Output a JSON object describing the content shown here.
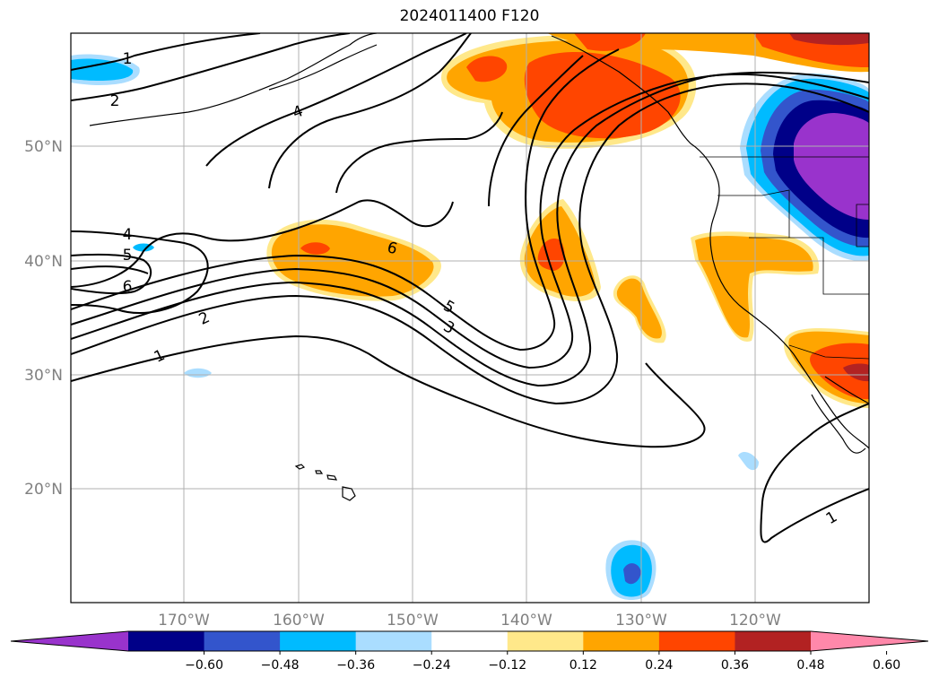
{
  "title": "2024011400 F120",
  "map": {
    "lon_range": [
      -180,
      -110
    ],
    "lat_range": [
      10,
      60
    ],
    "grid": true,
    "lat_ticks": [
      {
        "label": "50°N"
      },
      {
        "label": "40°N"
      },
      {
        "label": "30°N"
      },
      {
        "label": "20°N"
      }
    ],
    "lon_ticks": [
      {
        "label": "170°W"
      },
      {
        "label": "160°W"
      },
      {
        "label": "150°W"
      },
      {
        "label": "140°W"
      },
      {
        "label": "130°W"
      },
      {
        "label": "120°W"
      }
    ],
    "contour_labels": [
      "1",
      "2",
      "4",
      "4",
      "5",
      "6",
      "6",
      "5",
      "3",
      "2",
      "1",
      "1"
    ]
  },
  "colorbar": {
    "ticks": [
      "−0.60",
      "−0.48",
      "−0.36",
      "−0.24",
      "−0.12",
      "0.12",
      "0.24",
      "0.36",
      "0.48",
      "0.60"
    ],
    "colors": [
      "#9933cc",
      "#000088",
      "#3355cc",
      "#00bbff",
      "#aaddff",
      "#ffffff",
      "#ffe88a",
      "#ffa500",
      "#ff4500",
      "#b22222",
      "#ff88aa"
    ],
    "extend": "both"
  }
}
